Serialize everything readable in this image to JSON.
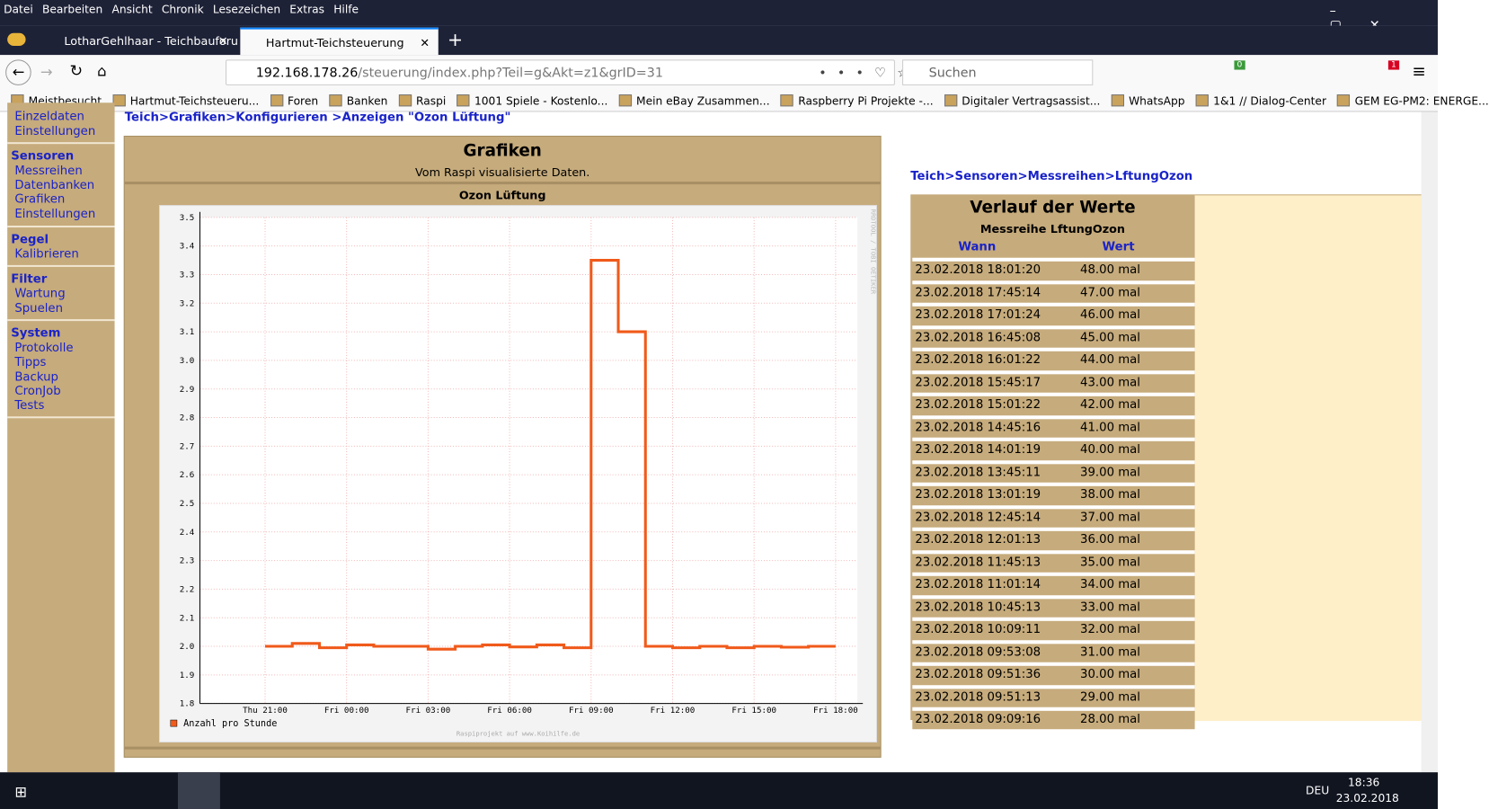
{
  "menu": [
    "Datei",
    "Bearbeiten",
    "Ansicht",
    "Chronik",
    "Lesezeichen",
    "Extras",
    "Hilfe"
  ],
  "tabs": [
    "LotharGehlhaar - Teichbauforu",
    "Hartmut-Teichsteuerung"
  ],
  "url": {
    "host": "192.168.178.26",
    "path": "/steuerung/index.php?Teil=g&Akt=z1&grID=31"
  },
  "search": "Suchen",
  "badges": [
    0,
    1
  ],
  "bookmarks": [
    "Meistbesucht",
    "Hartmut-Teichsteueru...",
    "Foren",
    "Banken",
    "Raspi",
    "1001 Spiele - Kostenlo...",
    "Mein eBay Zusammen...",
    "Raspberry Pi Projekte -...",
    "Digitaler Vertragsassist...",
    "WhatsApp",
    "1&1 // Dialog-Center",
    "GEM EG-PM2: ENERGE..."
  ],
  "sidebar": {
    "top": [
      "Einzeldaten",
      "Einstellungen"
    ],
    "groups": [
      {
        "title": "Sensoren",
        "items": [
          "Messreihen",
          "Datenbanken",
          "Grafiken",
          "Einstellungen"
        ]
      },
      {
        "title": "Pegel",
        "items": [
          "Kalibrieren"
        ]
      },
      {
        "title": "Filter",
        "items": [
          "Wartung",
          "Spuelen"
        ]
      },
      {
        "title": "System",
        "items": [
          "Protokolle",
          "Tipps",
          "Backup",
          "CronJob",
          "Tests"
        ]
      }
    ]
  },
  "breadcrumb": {
    "sep": ">",
    "items": [
      "Teich",
      "Grafiken",
      "Konfigurieren ",
      "Anzeigen \"Ozon Lüftung\""
    ]
  },
  "panel": {
    "title": "Grafiken",
    "subtitle": "Vom Raspi visualisierte Daten."
  },
  "chart_data": {
    "type": "line",
    "step": true,
    "title": "Ozon Lüftung",
    "watermark": "RRDTOOL / TOBI OETIKER",
    "footer": "Raspiprojekt auf www.Koihilfe.de",
    "x": [
      21,
      22,
      23,
      24,
      25,
      26,
      27,
      28,
      29,
      30,
      31,
      32,
      33,
      34,
      35,
      36,
      37,
      38,
      39,
      40,
      41,
      42
    ],
    "series": [
      {
        "name": "Anzahl pro Stunde",
        "color": "#f05a1a",
        "values": [
          2.0,
          2.01,
          1.995,
          2.005,
          2.0,
          2.0,
          1.99,
          2.0,
          2.005,
          1.998,
          2.005,
          1.995,
          3.35,
          3.1,
          2.0,
          1.995,
          2.0,
          1.995,
          2.0,
          1.997,
          2.0,
          2.0
        ]
      }
    ],
    "xlim": [
      18.6,
      42.8
    ],
    "xticks": [
      {
        "value": 21,
        "label": "Thu 21:00"
      },
      {
        "value": 24,
        "label": "Fri 00:00"
      },
      {
        "value": 27,
        "label": "Fri 03:00"
      },
      {
        "value": 30,
        "label": "Fri 06:00"
      },
      {
        "value": 33,
        "label": "Fri 09:00"
      },
      {
        "value": 36,
        "label": "Fri 12:00"
      },
      {
        "value": 39,
        "label": "Fri 15:00"
      },
      {
        "value": 42,
        "label": "Fri 18:00"
      }
    ],
    "ylim": [
      1.8,
      3.5
    ],
    "yticks": [
      1.8,
      1.9,
      {
        "value": 2,
        "label": "2.0"
      },
      2.1,
      2.2,
      2.3,
      2.4,
      2.5,
      2.6,
      2.7,
      2.8,
      2.9,
      {
        "value": 3,
        "label": "3.0"
      },
      3.1,
      3.2,
      3.3,
      3.4,
      3.5
    ],
    "grid": true
  },
  "values_breadcrumb": {
    "sep": ">",
    "items": [
      "Teich",
      "Sensoren",
      "Messreihen",
      "LftungOzon"
    ]
  },
  "table": {
    "title": "Verlauf der Werte",
    "subtitle": "Messreihe LftungOzon",
    "header": [
      "Wann",
      "Wert"
    ],
    "rows": [
      [
        "23.02.2018 18:01:20",
        "48.00 mal"
      ],
      [
        "23.02.2018 17:45:14",
        "47.00 mal"
      ],
      [
        "23.02.2018 17:01:24",
        "46.00 mal"
      ],
      [
        "23.02.2018 16:45:08",
        "45.00 mal"
      ],
      [
        "23.02.2018 16:01:22",
        "44.00 mal"
      ],
      [
        "23.02.2018 15:45:17",
        "43.00 mal"
      ],
      [
        "23.02.2018 15:01:22",
        "42.00 mal"
      ],
      [
        "23.02.2018 14:45:16",
        "41.00 mal"
      ],
      [
        "23.02.2018 14:01:19",
        "40.00 mal"
      ],
      [
        "23.02.2018 13:45:11",
        "39.00 mal"
      ],
      [
        "23.02.2018 13:01:19",
        "38.00 mal"
      ],
      [
        "23.02.2018 12:45:14",
        "37.00 mal"
      ],
      [
        "23.02.2018 12:01:13",
        "36.00 mal"
      ],
      [
        "23.02.2018 11:45:13",
        "35.00 mal"
      ],
      [
        "23.02.2018 11:01:14",
        "34.00 mal"
      ],
      [
        "23.02.2018 10:45:13",
        "33.00 mal"
      ],
      [
        "23.02.2018 10:09:11",
        "32.00 mal"
      ],
      [
        "23.02.2018 09:53:08",
        "31.00 mal"
      ],
      [
        "23.02.2018 09:51:36",
        "30.00 mal"
      ],
      [
        "23.02.2018 09:51:13",
        "29.00 mal"
      ],
      [
        "23.02.2018 09:09:16",
        "28.00 mal"
      ]
    ]
  },
  "taskbar": {
    "lang": "DEU",
    "time": "18:36",
    "date": "23.02.2018"
  }
}
